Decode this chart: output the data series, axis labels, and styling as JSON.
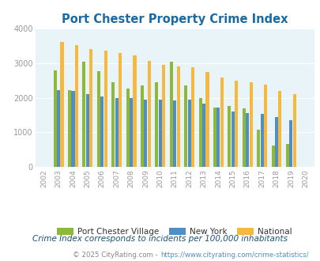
{
  "title": "Port Chester Property Crime Index",
  "years": [
    2002,
    2003,
    2004,
    2005,
    2006,
    2007,
    2008,
    2009,
    2010,
    2011,
    2012,
    2013,
    2014,
    2015,
    2016,
    2017,
    2018,
    2019,
    2020
  ],
  "port_chester": [
    0,
    2800,
    2230,
    3050,
    2780,
    2450,
    2270,
    2360,
    2450,
    3050,
    2360,
    1990,
    1720,
    1760,
    1700,
    1080,
    630,
    660,
    0
  ],
  "new_york": [
    0,
    2220,
    2200,
    2100,
    2050,
    2000,
    2000,
    1950,
    1950,
    1920,
    1950,
    1840,
    1720,
    1600,
    1560,
    1530,
    1450,
    1360,
    0
  ],
  "national": [
    0,
    3610,
    3520,
    3420,
    3360,
    3290,
    3230,
    3060,
    2960,
    2920,
    2880,
    2760,
    2600,
    2500,
    2460,
    2390,
    2200,
    2100,
    0
  ],
  "colors": {
    "port_chester": "#8db83a",
    "new_york": "#4f8fc4",
    "national": "#f5b942"
  },
  "ylim": [
    0,
    4000
  ],
  "yticks": [
    0,
    1000,
    2000,
    3000,
    4000
  ],
  "legend_labels": [
    "Port Chester Village",
    "New York",
    "National"
  ],
  "footnote1": "Crime Index corresponds to incidents per 100,000 inhabitants",
  "footnote2_prefix": "© 2025 CityRating.com - ",
  "footnote2_link": "https://www.cityrating.com/crime-statistics/",
  "bg_color": "#e8f4f8",
  "fig_bg": "#ffffff",
  "title_color": "#1a6aa5",
  "footnote1_color": "#1a5276",
  "footnote2_color": "#888888",
  "footnote2_link_color": "#4f8fc4",
  "tick_color": "#999999",
  "grid_color": "#ffffff",
  "bar_width": 0.22,
  "bar_gap": 0.02
}
